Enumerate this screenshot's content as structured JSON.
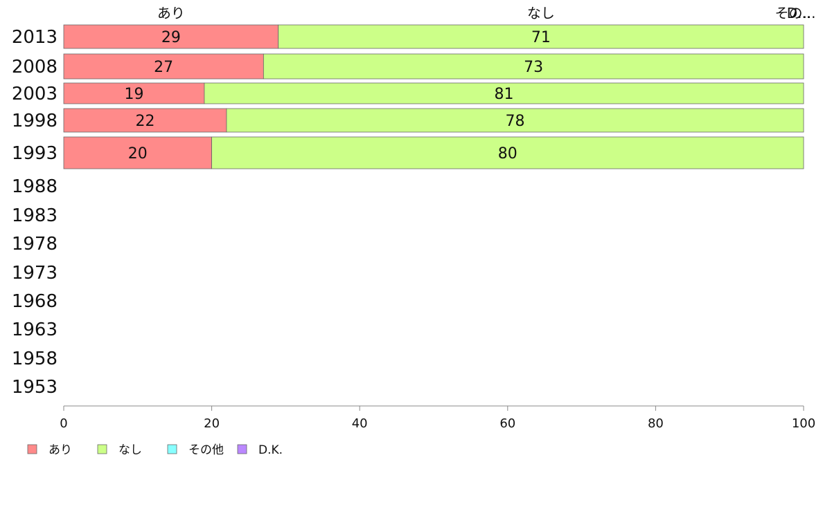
{
  "chart_data": {
    "type": "bar",
    "orientation": "horizontal",
    "stacked": true,
    "categories": [
      "2013",
      "2008",
      "2003",
      "1998",
      "1993",
      "1988",
      "1983",
      "1978",
      "1973",
      "1968",
      "1963",
      "1958",
      "1953"
    ],
    "series": [
      {
        "name": "あり",
        "color": "#ff8a8a",
        "values": [
          29,
          27,
          19,
          22,
          20,
          null,
          null,
          null,
          null,
          null,
          null,
          null,
          null
        ]
      },
      {
        "name": "なし",
        "color": "#ccff88",
        "values": [
          71,
          73,
          81,
          78,
          80,
          null,
          null,
          null,
          null,
          null,
          null,
          null,
          null
        ]
      },
      {
        "name": "その他",
        "color": "#88ffff",
        "values": [
          0,
          0,
          0,
          0,
          0,
          null,
          null,
          null,
          null,
          null,
          null,
          null,
          null
        ]
      },
      {
        "name": "D.K.",
        "color": "#bb88ff",
        "values": [
          0,
          0,
          0,
          0,
          0,
          null,
          null,
          null,
          null,
          null,
          null,
          null,
          null
        ]
      }
    ],
    "top_labels": [
      "あり",
      "なし",
      "その...",
      "D..."
    ],
    "xlim": [
      0,
      100
    ],
    "xticks": [
      0,
      20,
      40,
      60,
      80,
      100
    ],
    "grid": false,
    "legend": "bottom-left"
  }
}
